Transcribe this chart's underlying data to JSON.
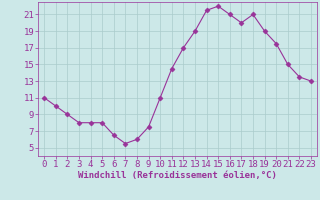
{
  "x": [
    0,
    1,
    2,
    3,
    4,
    5,
    6,
    7,
    8,
    9,
    10,
    11,
    12,
    13,
    14,
    15,
    16,
    17,
    18,
    19,
    20,
    21,
    22,
    23
  ],
  "y": [
    11,
    10,
    9,
    8,
    8,
    8,
    6.5,
    5.5,
    6,
    7.5,
    11,
    14.5,
    17,
    19,
    21.5,
    22,
    21,
    20,
    21,
    19,
    17.5,
    15,
    13.5,
    13
  ],
  "line_color": "#993399",
  "marker": "D",
  "marker_size": 2.5,
  "bg_color": "#cce8e8",
  "grid_color": "#aacccc",
  "xlabel": "Windchill (Refroidissement éolien,°C)",
  "xlabel_color": "#993399",
  "tick_color": "#993399",
  "ylim": [
    4,
    22.5
  ],
  "xlim": [
    -0.5,
    23.5
  ],
  "yticks": [
    5,
    7,
    9,
    11,
    13,
    15,
    17,
    19,
    21
  ],
  "xticks": [
    0,
    1,
    2,
    3,
    4,
    5,
    6,
    7,
    8,
    9,
    10,
    11,
    12,
    13,
    14,
    15,
    16,
    17,
    18,
    19,
    20,
    21,
    22,
    23
  ],
  "tick_fontsize": 6.5,
  "label_fontsize": 6.5
}
